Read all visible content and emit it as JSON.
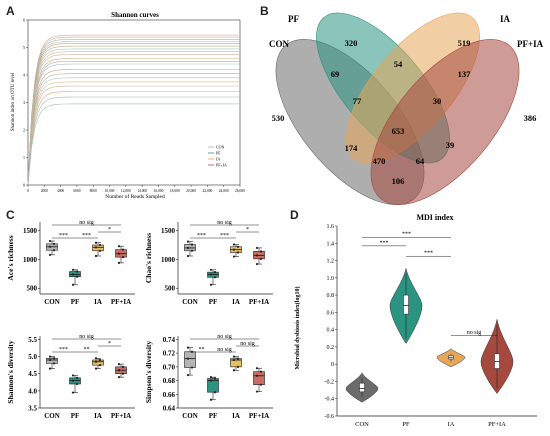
{
  "panels": {
    "a": "A",
    "b": "B",
    "c": "C",
    "d": "D"
  },
  "panel_a": {
    "title": "Shannon curves",
    "ylabel": "Shannon index on OTU level",
    "xlabel": "Number of Reads Sampled",
    "xticks": [
      "0",
      "2000",
      "4000",
      "6000",
      "8000",
      "10,000",
      "12,000",
      "14,000",
      "16,000",
      "18,000",
      "20,000",
      "22,000",
      "24,000",
      "26,000"
    ],
    "yticks": [
      "0",
      "1",
      "2",
      "3",
      "4",
      "5",
      "6"
    ],
    "legend": [
      "CON",
      "PF",
      "IA",
      "PF+IA"
    ]
  },
  "venn": {
    "sets": [
      {
        "name": "CON",
        "color": "#6b6b6b"
      },
      {
        "name": "PF",
        "color": "#2a9481"
      },
      {
        "name": "IA",
        "color": "#e6a65a"
      },
      {
        "name": "PF+IA",
        "color": "#a5493f"
      }
    ],
    "counts": {
      "pf_only": "320",
      "ia_only": "519",
      "con_only": "530",
      "pfia_only": "386",
      "con_pf": "69",
      "pf_ia": "54",
      "ia_pfia": "137",
      "con_pf_ia": "77",
      "pf_ia_pfia": "30",
      "all": "653",
      "con_ia": "174",
      "con_ia_pfia": "470",
      "con_pf_pfia": "64",
      "pf_pfia": "39",
      "con_pfia": "106"
    }
  },
  "panel_c": {
    "groups": [
      "CON",
      "PF",
      "IA",
      "PF+IA"
    ],
    "colors": [
      "#b5b5b5",
      "#2a9481",
      "#e6c060",
      "#c96d62"
    ],
    "plots": [
      {
        "ylabel": "Ace's richness",
        "yticks": [
          "500",
          "1000",
          "1500"
        ],
        "ylim": [
          400,
          1650
        ],
        "boxes": [
          [
            1080,
            1160,
            1220,
            1270,
            1320
          ],
          [
            560,
            700,
            740,
            790,
            820
          ],
          [
            1060,
            1150,
            1210,
            1250,
            1290
          ],
          [
            940,
            1040,
            1100,
            1170,
            1230
          ]
        ],
        "sig": [
          [
            "CON",
            "PF",
            "***"
          ],
          [
            "PF",
            "IA",
            "***"
          ],
          [
            "IA",
            "PF+IA",
            "*"
          ],
          [
            "CON",
            "PF+IA",
            "no sig"
          ]
        ]
      },
      {
        "ylabel": "Chao's richness",
        "yticks": [
          "500",
          "1000",
          "1500"
        ],
        "ylim": [
          400,
          1650
        ],
        "boxes": [
          [
            1060,
            1150,
            1200,
            1260,
            1310
          ],
          [
            560,
            690,
            740,
            780,
            820
          ],
          [
            1050,
            1120,
            1170,
            1220,
            1260
          ],
          [
            920,
            1010,
            1070,
            1140,
            1200
          ]
        ],
        "sig": [
          [
            "CON",
            "PF",
            "***"
          ],
          [
            "PF",
            "IA",
            "***"
          ],
          [
            "IA",
            "PF+IA",
            "*"
          ],
          [
            "CON",
            "PF+IA",
            "no sig"
          ]
        ]
      },
      {
        "ylabel": "Shannon's diversity",
        "yticks": [
          "3.5",
          "4.0",
          "4.5",
          "5.0",
          "5.5"
        ],
        "ylim": [
          3.5,
          5.6
        ],
        "boxes": [
          [
            4.65,
            4.8,
            4.9,
            4.95,
            5.0
          ],
          [
            3.95,
            4.2,
            4.3,
            4.38,
            4.45
          ],
          [
            4.65,
            4.75,
            4.85,
            4.9,
            4.95
          ],
          [
            4.4,
            4.5,
            4.6,
            4.7,
            4.78
          ]
        ],
        "sig": [
          [
            "CON",
            "PF",
            "***"
          ],
          [
            "PF",
            "IA",
            "**"
          ],
          [
            "IA",
            "PF+IA",
            "*"
          ],
          [
            "CON",
            "PF+IA",
            "no sig"
          ]
        ]
      },
      {
        "ylabel": "Simpson's diversity",
        "yticks": [
          "0.64",
          "0.66",
          "0.68",
          "0.70",
          "0.72",
          "0.74"
        ],
        "ylim": [
          0.64,
          0.745
        ],
        "boxes": [
          [
            0.688,
            0.699,
            0.712,
            0.722,
            0.728
          ],
          [
            0.652,
            0.663,
            0.68,
            0.683,
            0.685
          ],
          [
            0.695,
            0.7,
            0.71,
            0.712,
            0.715
          ],
          [
            0.664,
            0.674,
            0.687,
            0.693,
            0.698
          ]
        ],
        "sig": [
          [
            "CON",
            "PF",
            "**"
          ],
          [
            "PF",
            "IA",
            "no sig"
          ],
          [
            "IA",
            "PF+IA",
            "no sig"
          ],
          [
            "CON",
            "PF+IA",
            "no sig"
          ]
        ]
      }
    ]
  },
  "panel_d": {
    "title": "MDI index",
    "ylabel": "Microbial dysbiosis index(log10)",
    "yticks": [
      "-0.6",
      "-0.4",
      "-0.2",
      "0",
      "0.2",
      "0.4",
      "0.6",
      "0.8",
      "1.0",
      "1.2",
      "1.4",
      "1.6"
    ],
    "groups": [
      "CON",
      "PF",
      "IA",
      "PF+IA"
    ],
    "colors": [
      "#6b6b6b",
      "#2a9481",
      "#e6a65a",
      "#a5493f"
    ],
    "violins": [
      {
        "min": -0.38,
        "q1": -0.32,
        "med": -0.28,
        "q3": -0.22,
        "max": -0.16
      },
      {
        "min": 0.3,
        "q1": 0.58,
        "med": 0.68,
        "q3": 0.8,
        "max": 1.05
      },
      {
        "min": 0.03,
        "q1": 0.06,
        "med": 0.08,
        "q3": 0.1,
        "max": 0.12
      },
      {
        "min": -0.28,
        "q1": -0.05,
        "med": 0.03,
        "q3": 0.12,
        "max": 0.46
      }
    ],
    "sig": [
      [
        "CON",
        "PF",
        "***"
      ],
      [
        "CON",
        "IA",
        "***"
      ],
      [
        "PF",
        "IA",
        "***"
      ],
      [
        "IA",
        "PF+IA",
        "no sig"
      ]
    ]
  }
}
